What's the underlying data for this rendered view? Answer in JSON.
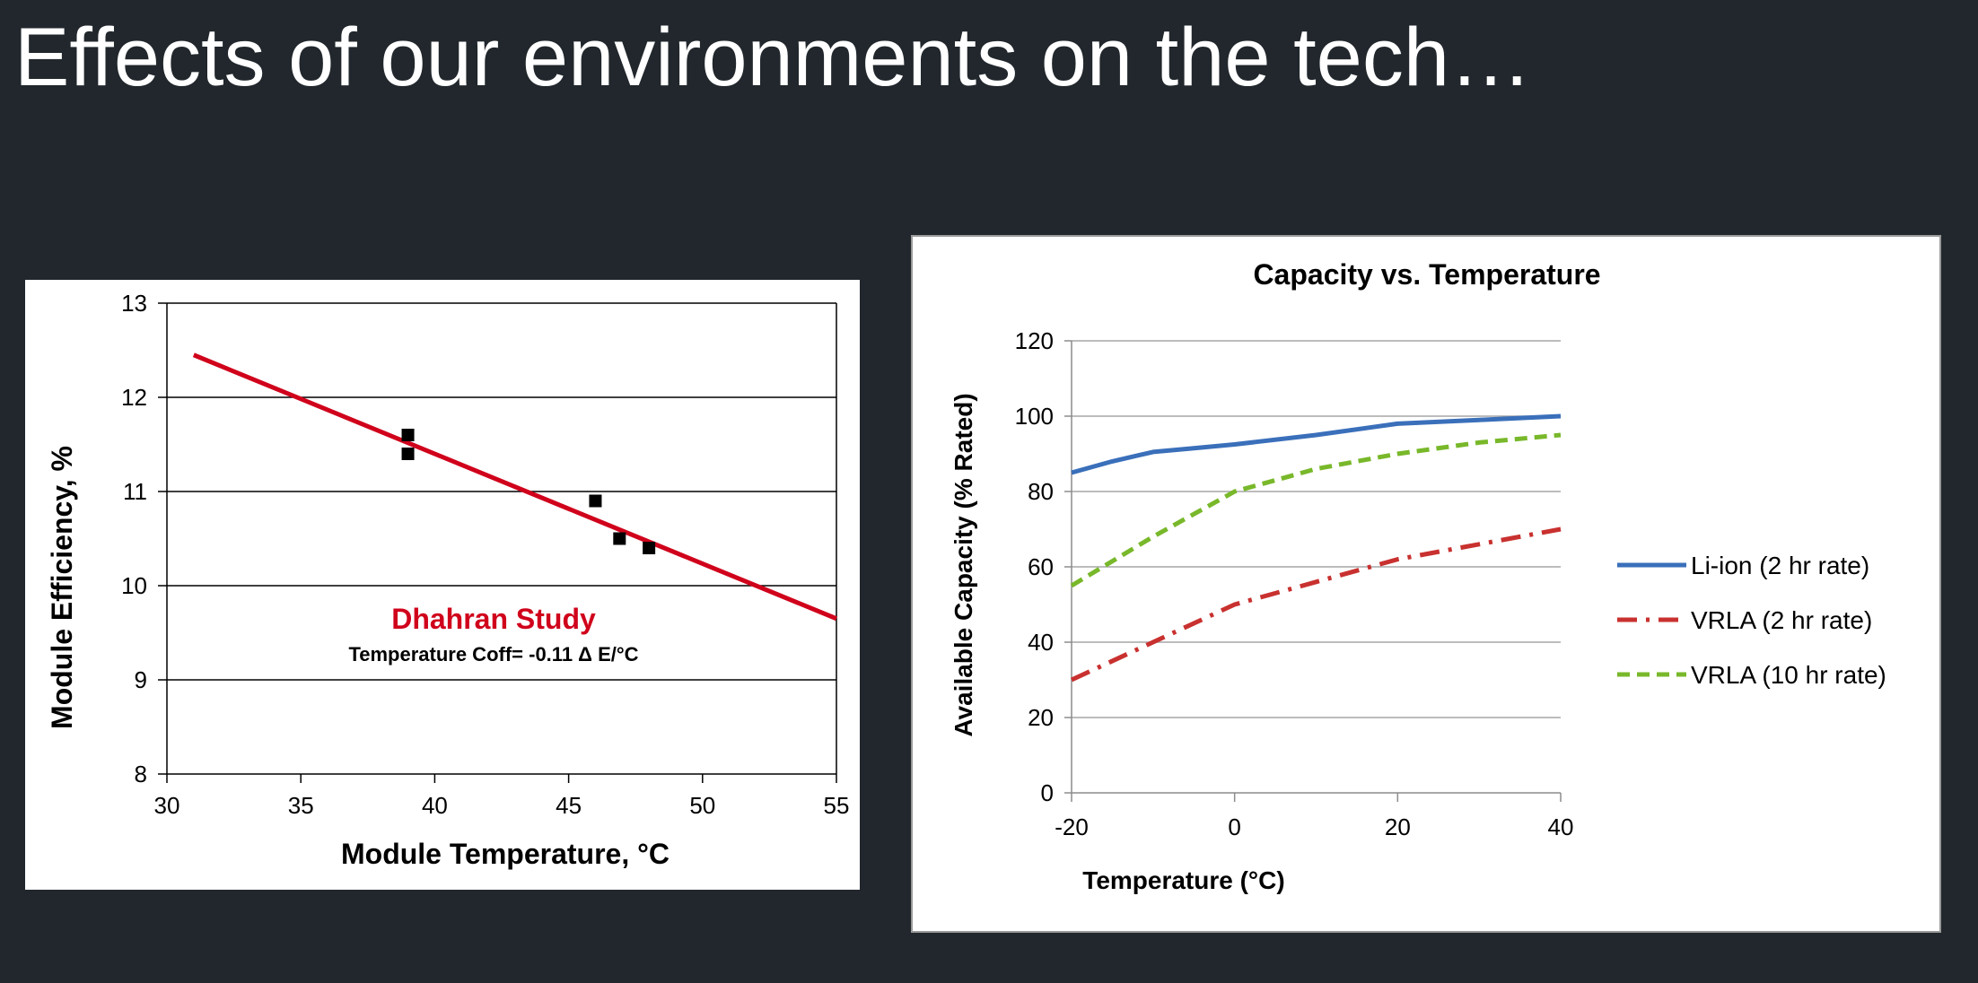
{
  "slide": {
    "title": "Effects of our environments on the tech…"
  },
  "chart_data": [
    {
      "type": "scatter",
      "title": "",
      "xlabel": "Module Temperature, °C",
      "ylabel": "Module Efficiency, %",
      "xlim": [
        30,
        55
      ],
      "ylim": [
        8,
        13
      ],
      "xticks": [
        "30",
        "35",
        "40",
        "45",
        "50",
        "55"
      ],
      "yticks": [
        "8",
        "9",
        "10",
        "11",
        "12",
        "13"
      ],
      "grid": "horizontal",
      "series": [
        {
          "kind": "scatter",
          "marker": "square",
          "color": "#000000",
          "points": [
            [
              39,
              11.6
            ],
            [
              39,
              11.4
            ],
            [
              46,
              10.9
            ],
            [
              46.9,
              10.5
            ],
            [
              48,
              10.4
            ]
          ]
        },
        {
          "kind": "trendline",
          "color": "#d0021b",
          "points": [
            [
              31,
              12.45
            ],
            [
              55,
              9.65
            ]
          ]
        }
      ],
      "annotations": {
        "study_label": "Dhahran Study",
        "study_color": "#d0021b",
        "coefficient_label": "Temperature Coff= -0.11 Δ E/°C"
      }
    },
    {
      "type": "line",
      "title": "Capacity vs. Temperature",
      "xlabel": "Temperature (°C)",
      "ylabel": "Available Capacity (% Rated)",
      "xlim": [
        -20,
        40
      ],
      "ylim": [
        0,
        120
      ],
      "xticks": [
        "-20",
        "0",
        "20",
        "40"
      ],
      "yticks": [
        "0",
        "20",
        "40",
        "60",
        "80",
        "100",
        "120"
      ],
      "grid": "horizontal",
      "legend": "right",
      "series": [
        {
          "name": "Li-ion (2 hr rate)",
          "color": "#3a6fba",
          "dash": "solid",
          "x": [
            -20,
            -15,
            -10,
            -5,
            0,
            10,
            20,
            30,
            40
          ],
          "values": [
            85,
            88,
            90.5,
            91.5,
            92.5,
            95,
            98,
            99,
            100
          ]
        },
        {
          "name": "VRLA (2 hr rate)",
          "color": "#c8312f",
          "dash": "dashdot",
          "x": [
            -20,
            -10,
            0,
            10,
            20,
            30,
            40
          ],
          "values": [
            30,
            40,
            50,
            56,
            62,
            66,
            70
          ]
        },
        {
          "name": "VRLA (10 hr rate)",
          "color": "#78b82a",
          "dash": "dash",
          "x": [
            -20,
            -10,
            0,
            10,
            20,
            30,
            40
          ],
          "values": [
            55,
            68,
            80,
            86,
            90,
            93,
            95
          ]
        }
      ]
    }
  ]
}
